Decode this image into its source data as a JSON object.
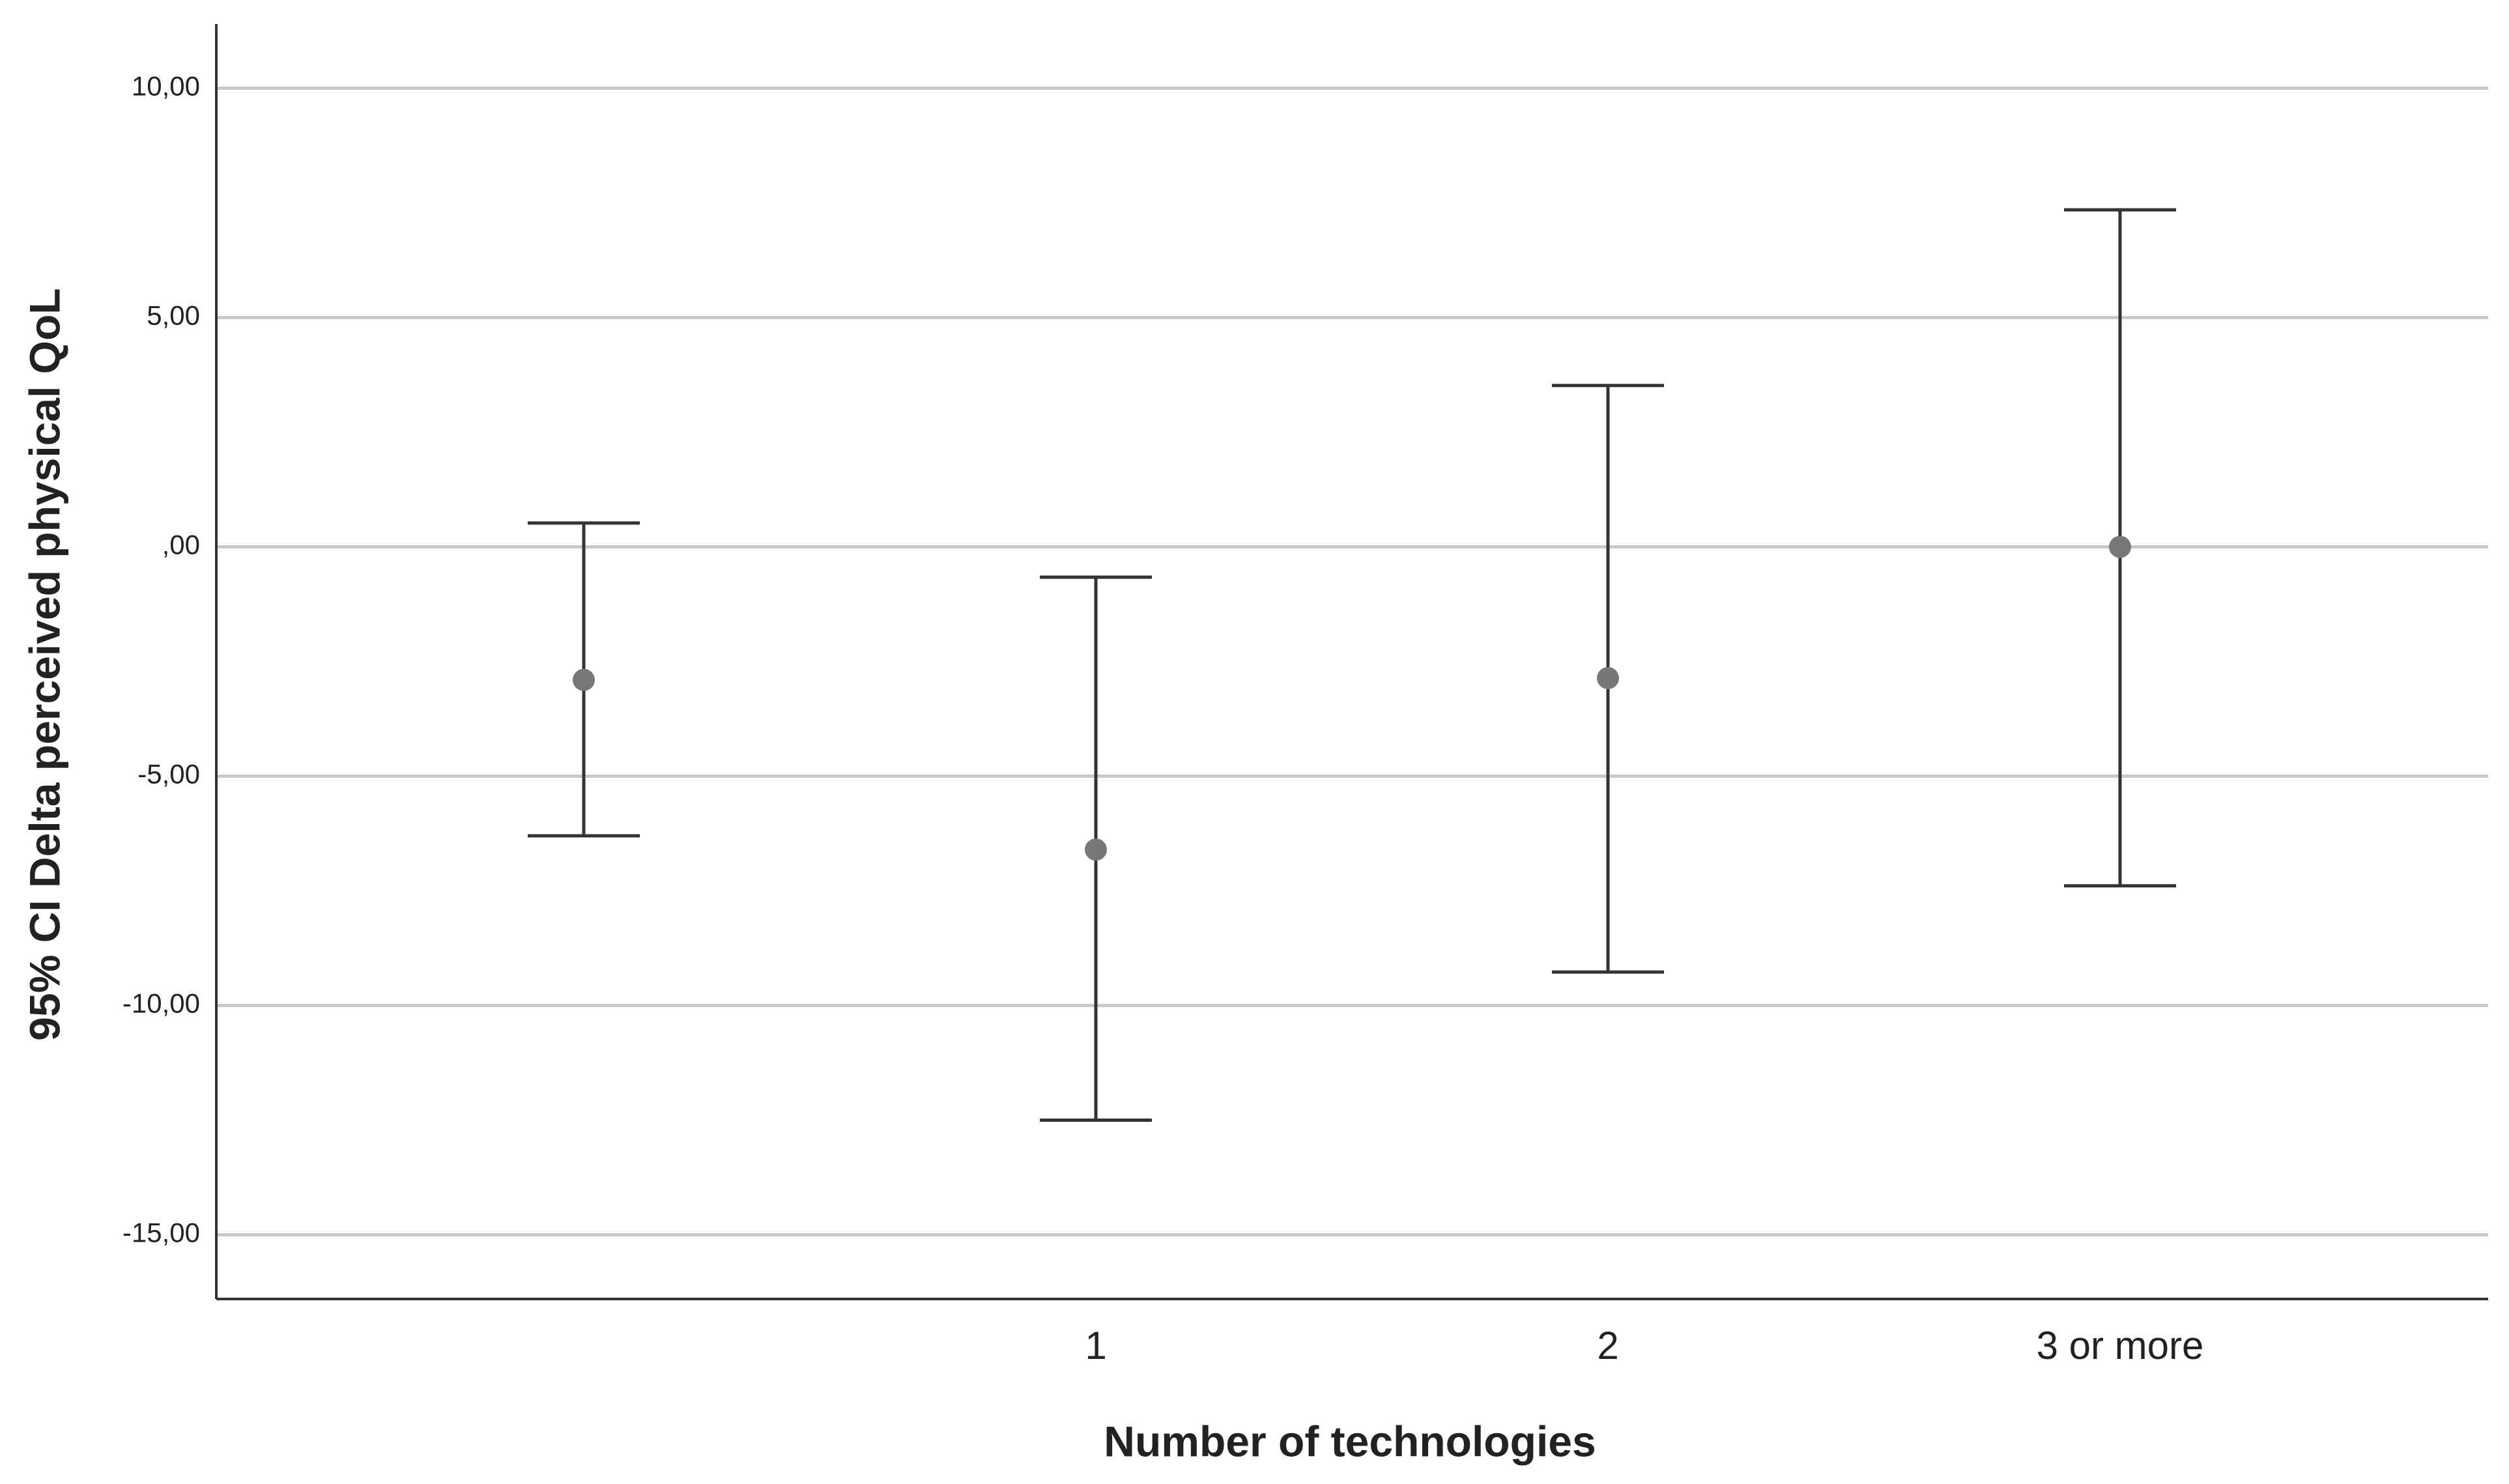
{
  "chart_data": {
    "type": "errorbar",
    "x_label": "Number of technologies",
    "y_label": "95% CI Delta perceived physical QoL",
    "categories": [
      null,
      "1",
      "2",
      "3 or more"
    ],
    "series": [
      {
        "color": "#777777",
        "values": [
          -2.9,
          -6.6,
          -2.86,
          0.0
        ],
        "lower": [
          -6.3,
          -12.5,
          -9.27,
          -7.39
        ],
        "upper": [
          0.52,
          -0.66,
          3.52,
          7.35
        ]
      }
    ],
    "ylim": [
      -16.4,
      11.4
    ],
    "yticks": [
      {
        "value": 10,
        "label": "10,00"
      },
      {
        "value": 5,
        "label": "5,00"
      },
      {
        "value": 0,
        "label": ",00"
      },
      {
        "value": -5,
        "label": "-5,00"
      },
      {
        "value": -10,
        "label": "-10,00"
      },
      {
        "value": -15,
        "label": "-15,00"
      }
    ],
    "grid": true
  }
}
